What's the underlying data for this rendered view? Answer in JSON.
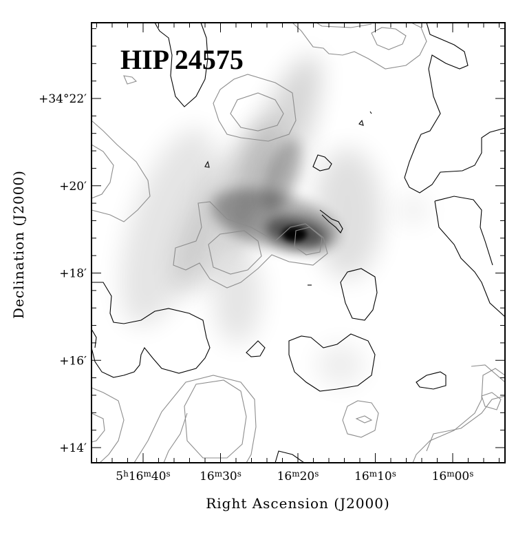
{
  "chart_data": {
    "type": "heatmap",
    "title": "HIP 24575",
    "xlabel": "Right Ascension (J2000)",
    "ylabel": "Declination (J2000)",
    "x_ticks": [
      {
        "value": "5h16m40s",
        "parts": [
          "5",
          "h",
          "16",
          "m",
          "40",
          "s"
        ]
      },
      {
        "value": "16m30s",
        "parts": [
          "",
          "",
          "16",
          "m",
          "30",
          "s"
        ]
      },
      {
        "value": "16m20s",
        "parts": [
          "",
          "",
          "16",
          "m",
          "20",
          "s"
        ]
      },
      {
        "value": "16m10s",
        "parts": [
          "",
          "",
          "16",
          "m",
          "10",
          "s"
        ]
      },
      {
        "value": "16m00s",
        "parts": [
          "",
          "",
          "16",
          "m",
          "00",
          "s"
        ]
      }
    ],
    "y_ticks": [
      "+34°22′",
      "+20′",
      "+18′",
      "+16′",
      "+14′"
    ],
    "x_seconds": [
      40,
      30,
      20,
      10,
      0
    ],
    "y_arcmin": [
      22,
      20,
      18,
      16,
      14
    ],
    "greyscale": "emission image, peak near 5h16m18s +34°18.9′",
    "contours": [
      {
        "name": "black contours",
        "color": "#000000"
      },
      {
        "name": "grey contours",
        "color": "#8c8c8c"
      }
    ]
  }
}
